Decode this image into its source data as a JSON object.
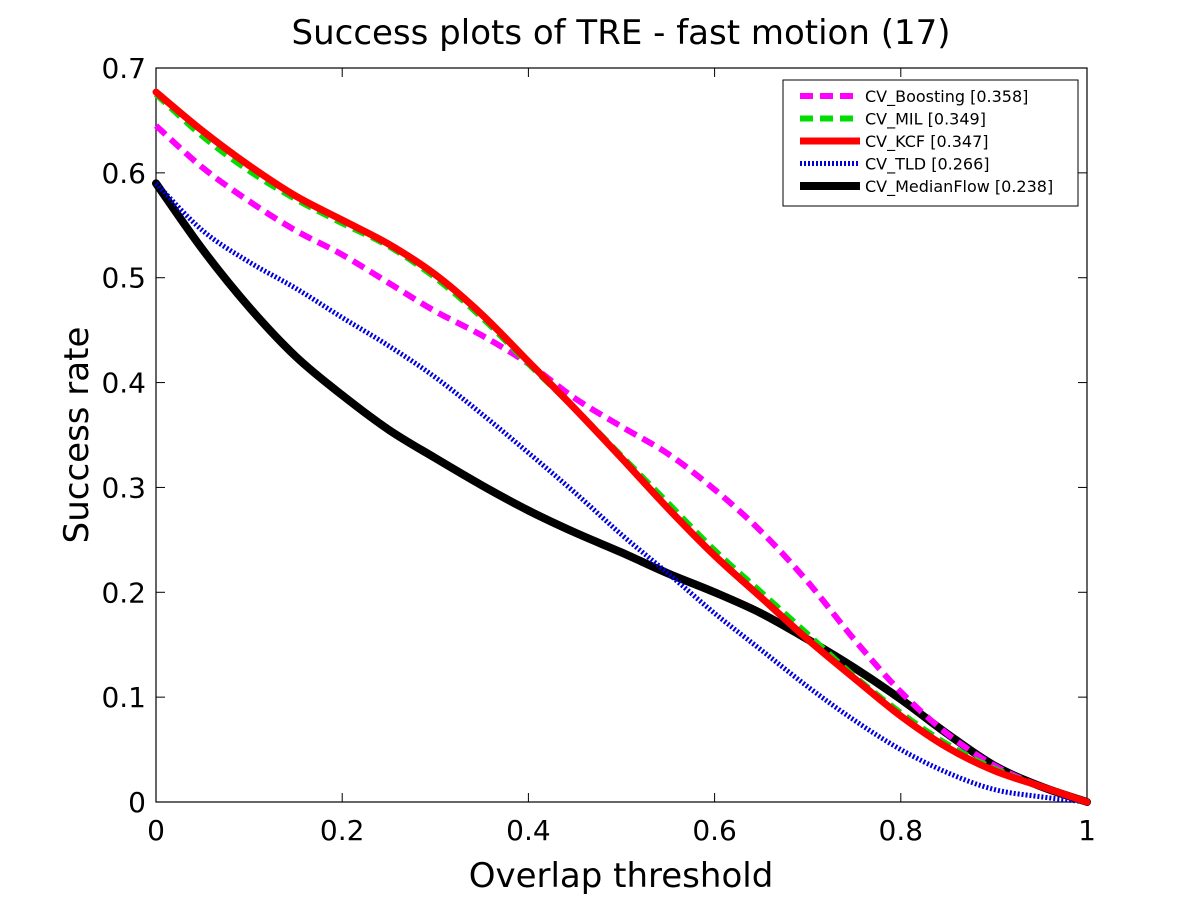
{
  "chart_data": {
    "type": "line",
    "title": "Success plots of TRE - fast motion (17)",
    "xlabel": "Overlap threshold",
    "ylabel": "Success rate",
    "xlim": [
      0,
      1
    ],
    "ylim": [
      0,
      0.7
    ],
    "xticks": [
      "0",
      "0.2",
      "0.4",
      "0.6",
      "0.8",
      "1"
    ],
    "yticks": [
      "0",
      "0.1",
      "0.2",
      "0.3",
      "0.4",
      "0.5",
      "0.6",
      "0.7"
    ],
    "grid": false,
    "legend_position": "top-right",
    "x": [
      0,
      0.05,
      0.1,
      0.15,
      0.2,
      0.25,
      0.3,
      0.35,
      0.4,
      0.45,
      0.5,
      0.55,
      0.6,
      0.65,
      0.7,
      0.75,
      0.8,
      0.85,
      0.9,
      0.95,
      1
    ],
    "series": [
      {
        "name": "CV_Boosting [0.358]",
        "color": "#ff00ff",
        "dash": "dashed",
        "values": [
          0.645,
          0.605,
          0.573,
          0.545,
          0.522,
          0.495,
          0.468,
          0.445,
          0.418,
          0.385,
          0.358,
          0.332,
          0.298,
          0.258,
          0.21,
          0.155,
          0.105,
          0.065,
          0.035,
          0.015,
          0
        ]
      },
      {
        "name": "CV_MIL [0.349]",
        "color": "#00dd00",
        "dash": "dashed",
        "values": [
          0.675,
          0.635,
          0.602,
          0.575,
          0.552,
          0.53,
          0.5,
          0.462,
          0.418,
          0.375,
          0.33,
          0.285,
          0.24,
          0.2,
          0.16,
          0.12,
          0.085,
          0.055,
          0.032,
          0.015,
          0
        ]
      },
      {
        "name": "CV_KCF [0.347]",
        "color": "#ff0000",
        "dash": "solid",
        "values": [
          0.677,
          0.64,
          0.607,
          0.578,
          0.555,
          0.532,
          0.503,
          0.465,
          0.42,
          0.375,
          0.328,
          0.28,
          0.235,
          0.195,
          0.155,
          0.118,
          0.082,
          0.052,
          0.03,
          0.015,
          0
        ]
      },
      {
        "name": "CV_TLD [0.266]",
        "color": "#0000dd",
        "dash": "dotted",
        "values": [
          0.59,
          0.545,
          0.515,
          0.49,
          0.462,
          0.435,
          0.405,
          0.37,
          0.333,
          0.295,
          0.255,
          0.218,
          0.18,
          0.145,
          0.11,
          0.078,
          0.05,
          0.028,
          0.012,
          0.005,
          0
        ]
      },
      {
        "name": "CV_MedianFlow [0.238]",
        "color": "#000000",
        "dash": "solid",
        "values": [
          0.59,
          0.527,
          0.472,
          0.425,
          0.388,
          0.355,
          0.328,
          0.302,
          0.278,
          0.257,
          0.238,
          0.218,
          0.2,
          0.18,
          0.155,
          0.128,
          0.098,
          0.065,
          0.035,
          0.015,
          0
        ]
      }
    ]
  }
}
